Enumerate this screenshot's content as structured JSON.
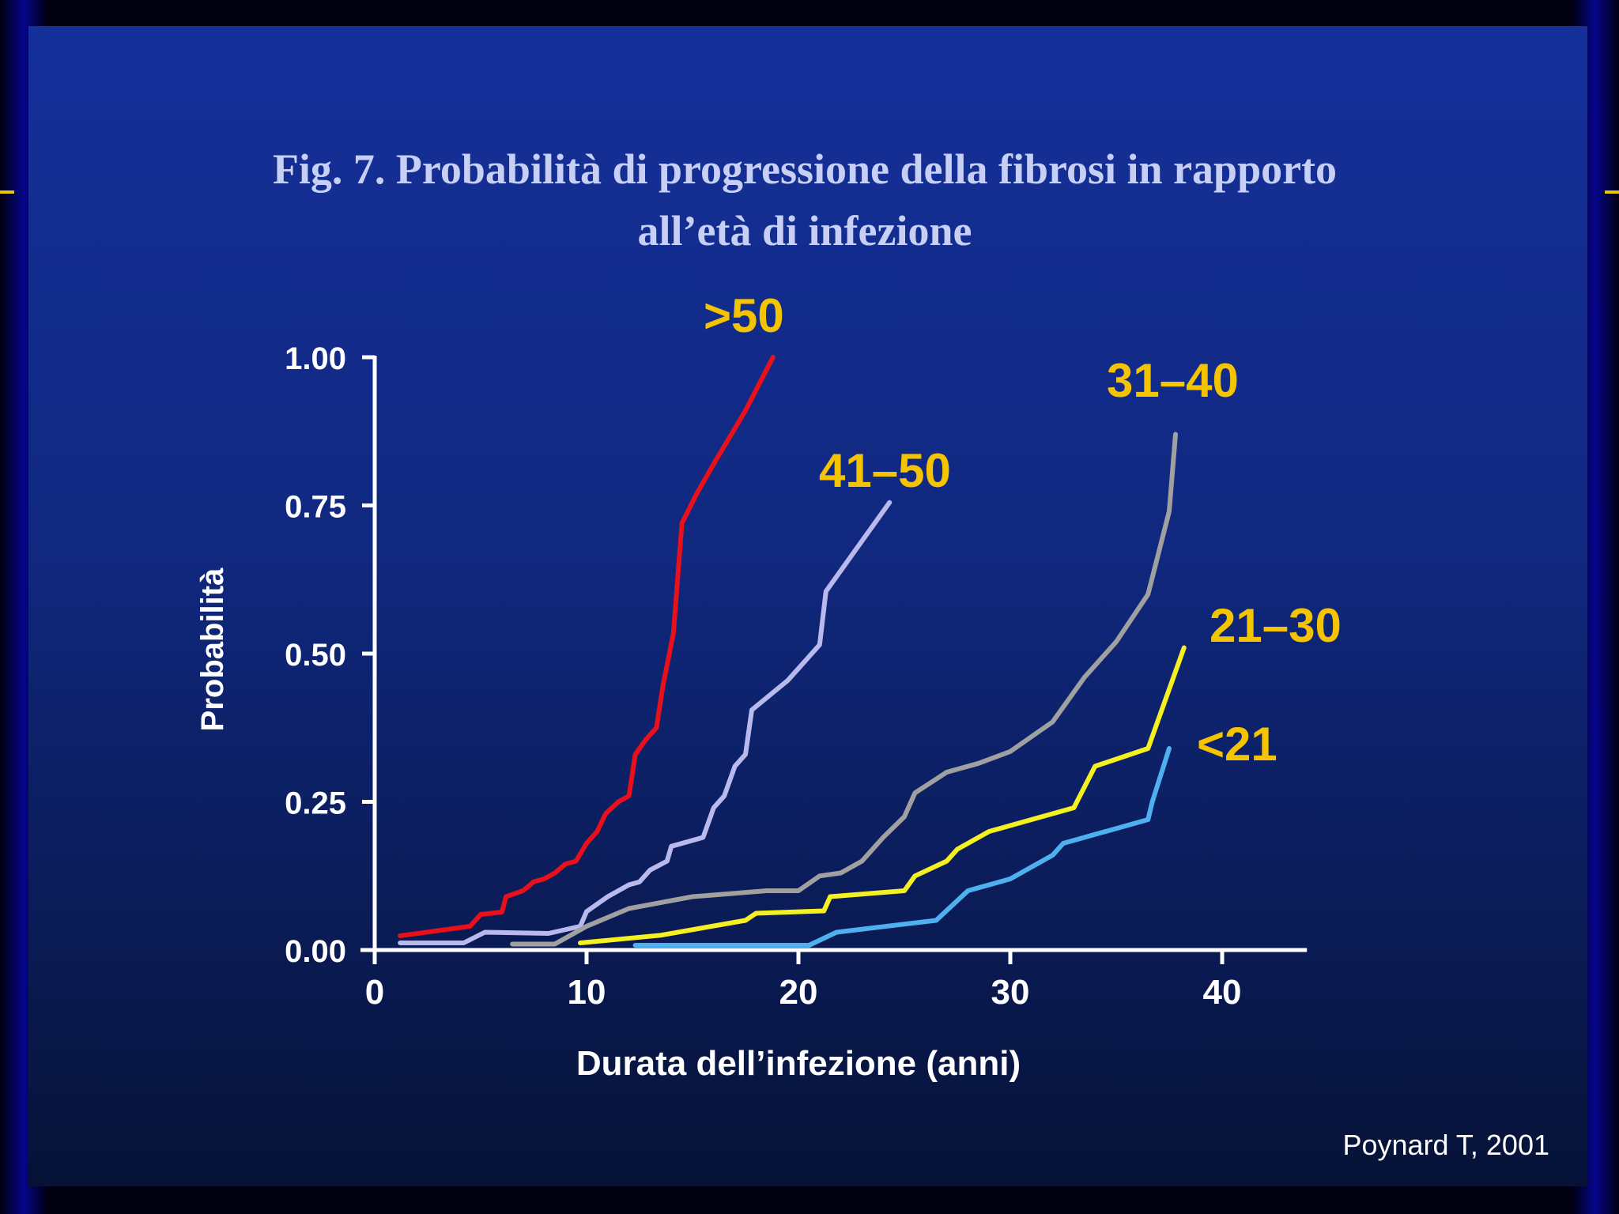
{
  "slide": {
    "title_line1": "Fig. 7. Probabilità di progressione della fibrosi in rapporto",
    "title_line2": "all’età di infezione",
    "source": "Poynard T, 2001"
  },
  "colors": {
    "background": "#0f2a8a",
    "axis": "#ffffff",
    "label": "#f5c400",
    "title": "#c8cff4"
  },
  "chart_data": {
    "type": "line",
    "xlabel": "Durata dell’infezione (anni)",
    "ylabel": "Probabilità",
    "xlim": [
      0,
      44
    ],
    "ylim": [
      0,
      1
    ],
    "x_ticks": [
      0,
      10,
      20,
      30,
      40
    ],
    "x_tick_labels": [
      "0",
      "10",
      "20",
      "30",
      "40"
    ],
    "y_ticks": [
      0,
      0.25,
      0.5,
      0.75,
      1
    ],
    "y_tick_labels": [
      "0.00",
      "0.25",
      "0.50",
      "0.75",
      "1.00"
    ],
    "grid": false,
    "series": [
      {
        "name": ">50",
        "color": "#e8101a",
        "points": [
          [
            1.2,
            0.024
          ],
          [
            4.5,
            0.04
          ],
          [
            5,
            0.06
          ],
          [
            6,
            0.064
          ],
          [
            6.2,
            0.09
          ],
          [
            7,
            0.1
          ],
          [
            7.5,
            0.115
          ],
          [
            8,
            0.12
          ],
          [
            8.5,
            0.13
          ],
          [
            9,
            0.145
          ],
          [
            9.5,
            0.15
          ],
          [
            10,
            0.18
          ],
          [
            10.5,
            0.2
          ],
          [
            10.9,
            0.23
          ],
          [
            11.5,
            0.25
          ],
          [
            12,
            0.26
          ],
          [
            12.3,
            0.33
          ],
          [
            12.8,
            0.355
          ],
          [
            13.3,
            0.375
          ],
          [
            13.6,
            0.445
          ],
          [
            14.1,
            0.535
          ],
          [
            14.5,
            0.72
          ],
          [
            15.2,
            0.77
          ],
          [
            16,
            0.82
          ],
          [
            17.5,
            0.91
          ],
          [
            18.8,
            1.0
          ]
        ]
      },
      {
        "name": "41–50",
        "color": "#b9b9ee",
        "points": [
          [
            1.2,
            0.012
          ],
          [
            4.2,
            0.012
          ],
          [
            5.2,
            0.03
          ],
          [
            8.2,
            0.028
          ],
          [
            9.7,
            0.04
          ],
          [
            10,
            0.065
          ],
          [
            11,
            0.09
          ],
          [
            12,
            0.11
          ],
          [
            12.5,
            0.115
          ],
          [
            13,
            0.135
          ],
          [
            13.8,
            0.15
          ],
          [
            14,
            0.175
          ],
          [
            15.5,
            0.19
          ],
          [
            16,
            0.24
          ],
          [
            16.5,
            0.26
          ],
          [
            17,
            0.31
          ],
          [
            17.5,
            0.33
          ],
          [
            17.8,
            0.405
          ],
          [
            19.5,
            0.455
          ],
          [
            21,
            0.515
          ],
          [
            21.3,
            0.605
          ],
          [
            24.3,
            0.755
          ]
        ]
      },
      {
        "name": "31–40",
        "color": "#a0a0a0",
        "points": [
          [
            6.5,
            0.01
          ],
          [
            8.5,
            0.01
          ],
          [
            10,
            0.04
          ],
          [
            12,
            0.07
          ],
          [
            15,
            0.09
          ],
          [
            18.5,
            0.1
          ],
          [
            20,
            0.1
          ],
          [
            21,
            0.125
          ],
          [
            22,
            0.13
          ],
          [
            23,
            0.15
          ],
          [
            24,
            0.19
          ],
          [
            25,
            0.225
          ],
          [
            25.5,
            0.265
          ],
          [
            27,
            0.3
          ],
          [
            28.5,
            0.315
          ],
          [
            30,
            0.335
          ],
          [
            32,
            0.385
          ],
          [
            33.5,
            0.46
          ],
          [
            35,
            0.52
          ],
          [
            36.5,
            0.6
          ],
          [
            37.5,
            0.74
          ],
          [
            37.8,
            0.87
          ]
        ]
      },
      {
        "name": "21–30",
        "color": "#f5f020",
        "points": [
          [
            9.7,
            0.012
          ],
          [
            13.5,
            0.025
          ],
          [
            17.5,
            0.05
          ],
          [
            18,
            0.062
          ],
          [
            21.2,
            0.066
          ],
          [
            21.5,
            0.09
          ],
          [
            25,
            0.1
          ],
          [
            25.5,
            0.125
          ],
          [
            27,
            0.15
          ],
          [
            27.5,
            0.17
          ],
          [
            28,
            0.18
          ],
          [
            29,
            0.2
          ],
          [
            33,
            0.24
          ],
          [
            34,
            0.31
          ],
          [
            36.5,
            0.34
          ],
          [
            38.2,
            0.51
          ]
        ]
      },
      {
        "name": "<21",
        "color": "#4fb0f0",
        "points": [
          [
            12.3,
            0.008
          ],
          [
            20.5,
            0.008
          ],
          [
            21.8,
            0.03
          ],
          [
            26.5,
            0.05
          ],
          [
            28,
            0.1
          ],
          [
            30,
            0.12
          ],
          [
            32,
            0.16
          ],
          [
            32.5,
            0.18
          ],
          [
            36.5,
            0.22
          ],
          [
            36.7,
            0.25
          ],
          [
            37.5,
            0.34
          ]
        ]
      }
    ]
  }
}
